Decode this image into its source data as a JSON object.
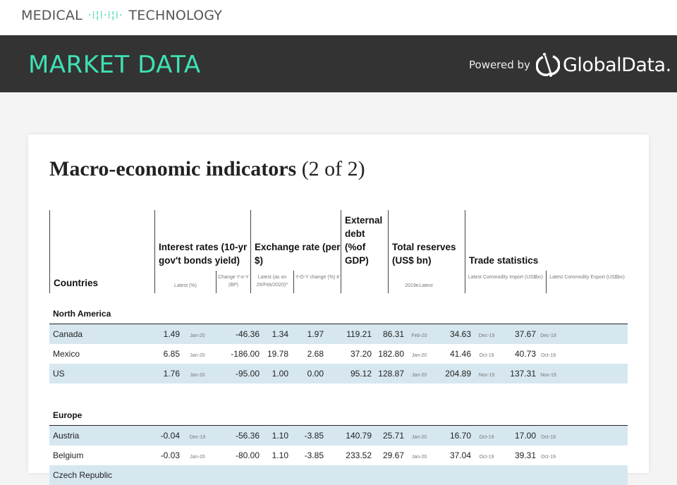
{
  "site": {
    "logo_left": "MEDICAL",
    "logo_right": "TECHNOLOGY"
  },
  "banner": {
    "title": "MARKET DATA",
    "powered_by": "Powered by",
    "brand": "GlobalData."
  },
  "card": {
    "title_bold": "Macro-economic indicators",
    "title_rest": " (2 of 2)"
  },
  "headers": {
    "countries": "Countries",
    "interest": "Interest rates (10-yr gov't bonds yield)",
    "interest_latest": "Latest (%)",
    "interest_change": "Change Y-o-Y (BP)",
    "exchange": "Exchange rate (per $)",
    "exchange_latest": "Latest (as on 29/Feb/2020)^",
    "exchange_yoy": "Y-O-Y change (%) #",
    "debt": "External debt (%of GDP)",
    "debt_sub": "2019e",
    "reserves": "Total reserves (US$ bn)",
    "reserves_sub": "Latest",
    "trade": "Trade statistics",
    "import": "Latest Commodity Import (US$bn)",
    "export": "Latest Commodity Export (US$bn)"
  },
  "sections": [
    {
      "name": "North America",
      "rows": [
        [
          "Canada",
          "1.49",
          "Jan-20",
          "-46.36",
          "1.34",
          "1.97",
          "119.21",
          "86.31",
          "Feb-20",
          "34.63",
          "Dec-19",
          "37.67",
          "Dec-19"
        ],
        [
          "Mexico",
          "6.85",
          "Jan-20",
          "-186.00",
          "19.78",
          "2.68",
          "37.20",
          "182.80",
          "Jan-20",
          "41.46",
          "Oct-19",
          "40.73",
          "Oct-19"
        ],
        [
          "US",
          "1.76",
          "Jan-20",
          "-95.00",
          "1.00",
          "0.00",
          "95.12",
          "128.87",
          "Jan-20",
          "204.89",
          "Nov-19",
          "137.31",
          "Nov-19"
        ]
      ]
    },
    {
      "name": "Europe",
      "rows": [
        [
          "Austria",
          "-0.04",
          "Dec-19",
          "-56.36",
          "1.10",
          "-3.85",
          "140.79",
          "25.71",
          "Jan-20",
          "16.70",
          "Oct-19",
          "17.00",
          "Oct-19"
        ],
        [
          "Belgium",
          "-0.03",
          "Jan-20",
          "-80.00",
          "1.10",
          "-3.85",
          "233.52",
          "29.67",
          "Jan-20",
          "37.04",
          "Oct-19",
          "39.31",
          "Oct-19"
        ],
        [
          "Czech Republic",
          "",
          "",
          "",
          "",
          "",
          "",
          "",
          "",
          "",
          "",
          "",
          ""
        ]
      ]
    }
  ]
}
